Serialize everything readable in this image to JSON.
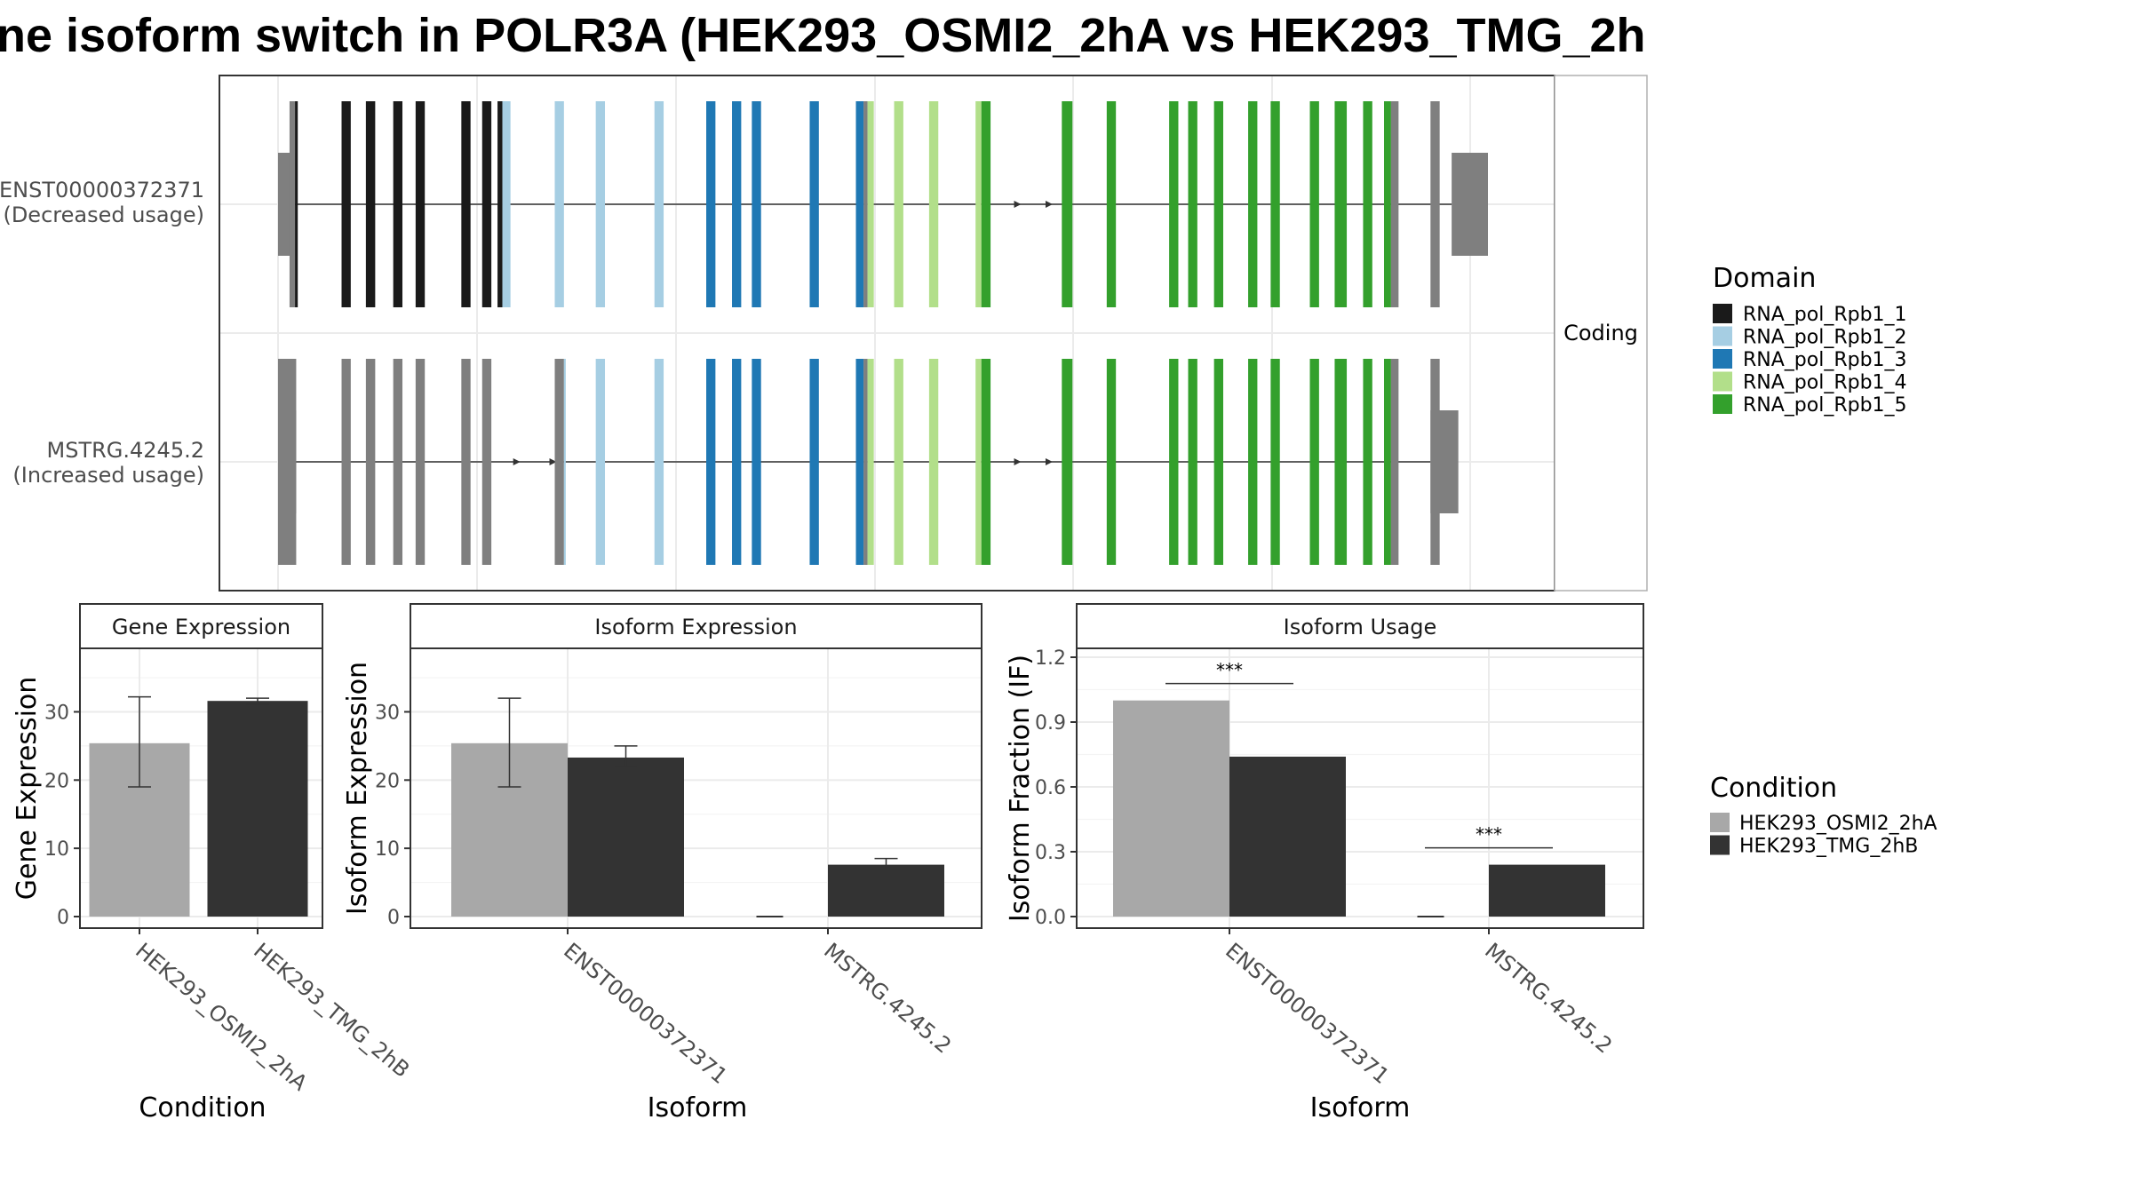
{
  "title": "ne isoform switch in POLR3A (HEK293_OSMI2_2hA vs HEK293_TMG_2h",
  "colors": {
    "domain": {
      "RNA_pol_Rpb1_1": "#1a1a1a",
      "RNA_pol_Rpb1_2": "#a6cee3",
      "RNA_pol_Rpb1_3": "#1f78b4",
      "RNA_pol_Rpb1_4": "#b2df8a",
      "RNA_pol_Rpb1_5": "#33a02c",
      "none": "#7f7f7f"
    },
    "condition": {
      "HEK293_OSMI2_2hA": "#a8a8a8",
      "HEK293_TMG_2hB": "#333333"
    }
  },
  "structure": {
    "strip": "Coding",
    "transcripts": [
      {
        "label_id": "ENST00000372371",
        "label_note": "(Decreased usage)",
        "utr5": [
          0.0,
          0.014
        ],
        "utr3": [
          0.97,
          1.0
        ],
        "cds": [
          {
            "s": 0.0095,
            "e": 0.014,
            "d": "none"
          },
          {
            "s": 0.014,
            "e": 0.0163,
            "d": "RNA_pol_Rpb1_1"
          },
          {
            "s": 0.0525,
            "e": 0.0601,
            "d": "RNA_pol_Rpb1_1"
          },
          {
            "s": 0.0726,
            "e": 0.0803,
            "d": "RNA_pol_Rpb1_1"
          },
          {
            "s": 0.0952,
            "e": 0.1028,
            "d": "RNA_pol_Rpb1_1"
          },
          {
            "s": 0.1137,
            "e": 0.1213,
            "d": "RNA_pol_Rpb1_1"
          },
          {
            "s": 0.1515,
            "e": 0.1591,
            "d": "RNA_pol_Rpb1_1"
          },
          {
            "s": 0.1687,
            "e": 0.1763,
            "d": "RNA_pol_Rpb1_1"
          },
          {
            "s": 0.1814,
            "e": 0.1854,
            "d": "RNA_pol_Rpb1_1"
          },
          {
            "s": 0.1854,
            "e": 0.1921,
            "d": "RNA_pol_Rpb1_2"
          },
          {
            "s": 0.2287,
            "e": 0.2363,
            "d": "RNA_pol_Rpb1_2"
          },
          {
            "s": 0.2626,
            "e": 0.2702,
            "d": "RNA_pol_Rpb1_2"
          },
          {
            "s": 0.3111,
            "e": 0.3187,
            "d": "RNA_pol_Rpb1_2"
          },
          {
            "s": 0.3539,
            "e": 0.3615,
            "d": "RNA_pol_Rpb1_3"
          },
          {
            "s": 0.3752,
            "e": 0.3828,
            "d": "RNA_pol_Rpb1_3"
          },
          {
            "s": 0.3916,
            "e": 0.3992,
            "d": "RNA_pol_Rpb1_3"
          },
          {
            "s": 0.4394,
            "e": 0.447,
            "d": "RNA_pol_Rpb1_3"
          },
          {
            "s": 0.4776,
            "e": 0.4839,
            "d": "RNA_pol_Rpb1_3"
          },
          {
            "s": 0.4839,
            "e": 0.4872,
            "d": "none"
          },
          {
            "s": 0.4872,
            "e": 0.4924,
            "d": "RNA_pol_Rpb1_4"
          },
          {
            "s": 0.5092,
            "e": 0.5168,
            "d": "RNA_pol_Rpb1_4"
          },
          {
            "s": 0.5381,
            "e": 0.5457,
            "d": "RNA_pol_Rpb1_4"
          },
          {
            "s": 0.5765,
            "e": 0.5813,
            "d": "RNA_pol_Rpb1_4"
          },
          {
            "s": 0.5813,
            "e": 0.5889,
            "d": "RNA_pol_Rpb1_5"
          },
          {
            "s": 0.6478,
            "e": 0.6566,
            "d": "RNA_pol_Rpb1_5"
          },
          {
            "s": 0.6849,
            "e": 0.6925,
            "d": "RNA_pol_Rpb1_5"
          },
          {
            "s": 0.7365,
            "e": 0.7441,
            "d": "RNA_pol_Rpb1_5"
          },
          {
            "s": 0.7522,
            "e": 0.7598,
            "d": "RNA_pol_Rpb1_5"
          },
          {
            "s": 0.7736,
            "e": 0.7812,
            "d": "RNA_pol_Rpb1_5"
          },
          {
            "s": 0.8018,
            "e": 0.8094,
            "d": "RNA_pol_Rpb1_5"
          },
          {
            "s": 0.8204,
            "e": 0.828,
            "d": "RNA_pol_Rpb1_5"
          },
          {
            "s": 0.8528,
            "e": 0.8604,
            "d": "RNA_pol_Rpb1_5"
          },
          {
            "s": 0.8733,
            "e": 0.8833,
            "d": "RNA_pol_Rpb1_5"
          },
          {
            "s": 0.8968,
            "e": 0.9044,
            "d": "RNA_pol_Rpb1_5"
          },
          {
            "s": 0.9141,
            "e": 0.9199,
            "d": "RNA_pol_Rpb1_5"
          },
          {
            "s": 0.9199,
            "e": 0.9261,
            "d": "none"
          },
          {
            "s": 0.9525,
            "e": 0.9601,
            "d": "none"
          }
        ],
        "arrows": [
          0.612,
          0.638
        ]
      },
      {
        "label_id": "MSTRG.4245.2",
        "label_note": "(Increased usage)",
        "utr5": [
          0.0,
          0.015
        ],
        "utr3": [
          0.9525,
          0.9755
        ],
        "cds": [
          {
            "s": 0.0,
            "e": 0.015,
            "d": "none"
          },
          {
            "s": 0.0525,
            "e": 0.0601,
            "d": "none"
          },
          {
            "s": 0.0726,
            "e": 0.0803,
            "d": "none"
          },
          {
            "s": 0.0952,
            "e": 0.1028,
            "d": "none"
          },
          {
            "s": 0.1137,
            "e": 0.1213,
            "d": "none"
          },
          {
            "s": 0.1515,
            "e": 0.1591,
            "d": "none"
          },
          {
            "s": 0.1687,
            "e": 0.1763,
            "d": "none"
          },
          {
            "s": 0.2287,
            "e": 0.2363,
            "d": "none"
          },
          {
            "s": 0.2363,
            "e": 0.2378,
            "d": "RNA_pol_Rpb1_2"
          },
          {
            "s": 0.2626,
            "e": 0.2702,
            "d": "RNA_pol_Rpb1_2"
          },
          {
            "s": 0.3111,
            "e": 0.3187,
            "d": "RNA_pol_Rpb1_2"
          },
          {
            "s": 0.3539,
            "e": 0.3615,
            "d": "RNA_pol_Rpb1_3"
          },
          {
            "s": 0.3752,
            "e": 0.3828,
            "d": "RNA_pol_Rpb1_3"
          },
          {
            "s": 0.3916,
            "e": 0.3992,
            "d": "RNA_pol_Rpb1_3"
          },
          {
            "s": 0.4394,
            "e": 0.447,
            "d": "RNA_pol_Rpb1_3"
          },
          {
            "s": 0.4776,
            "e": 0.4839,
            "d": "RNA_pol_Rpb1_3"
          },
          {
            "s": 0.4839,
            "e": 0.4872,
            "d": "none"
          },
          {
            "s": 0.4872,
            "e": 0.4924,
            "d": "RNA_pol_Rpb1_4"
          },
          {
            "s": 0.5092,
            "e": 0.5168,
            "d": "RNA_pol_Rpb1_4"
          },
          {
            "s": 0.5381,
            "e": 0.5457,
            "d": "RNA_pol_Rpb1_4"
          },
          {
            "s": 0.5765,
            "e": 0.5813,
            "d": "RNA_pol_Rpb1_4"
          },
          {
            "s": 0.5813,
            "e": 0.5889,
            "d": "RNA_pol_Rpb1_5"
          },
          {
            "s": 0.6478,
            "e": 0.6566,
            "d": "RNA_pol_Rpb1_5"
          },
          {
            "s": 0.6849,
            "e": 0.6925,
            "d": "RNA_pol_Rpb1_5"
          },
          {
            "s": 0.7365,
            "e": 0.7441,
            "d": "RNA_pol_Rpb1_5"
          },
          {
            "s": 0.7522,
            "e": 0.7598,
            "d": "RNA_pol_Rpb1_5"
          },
          {
            "s": 0.7736,
            "e": 0.7812,
            "d": "RNA_pol_Rpb1_5"
          },
          {
            "s": 0.8018,
            "e": 0.8094,
            "d": "RNA_pol_Rpb1_5"
          },
          {
            "s": 0.8204,
            "e": 0.828,
            "d": "RNA_pol_Rpb1_5"
          },
          {
            "s": 0.8528,
            "e": 0.8604,
            "d": "RNA_pol_Rpb1_5"
          },
          {
            "s": 0.8733,
            "e": 0.8833,
            "d": "RNA_pol_Rpb1_5"
          },
          {
            "s": 0.8968,
            "e": 0.9044,
            "d": "RNA_pol_Rpb1_5"
          },
          {
            "s": 0.9141,
            "e": 0.9199,
            "d": "RNA_pol_Rpb1_5"
          },
          {
            "s": 0.9199,
            "e": 0.9261,
            "d": "none"
          },
          {
            "s": 0.9525,
            "e": 0.9601,
            "d": "none"
          }
        ],
        "arrows": [
          0.198,
          0.228,
          0.612,
          0.638
        ]
      }
    ]
  },
  "legends": {
    "domain": {
      "title": "Domain",
      "items": [
        "RNA_pol_Rpb1_1",
        "RNA_pol_Rpb1_2",
        "RNA_pol_Rpb1_3",
        "RNA_pol_Rpb1_4",
        "RNA_pol_Rpb1_5"
      ]
    },
    "condition": {
      "title": "Condition",
      "items": [
        "HEK293_OSMI2_2hA",
        "HEK293_TMG_2hB"
      ]
    }
  },
  "chart_data": [
    {
      "type": "bar",
      "title": "Gene Expression",
      "xlabel": "Condition",
      "ylabel": "Gene Expression",
      "ylim": [
        0,
        38
      ],
      "yticks": [
        0,
        10,
        20,
        30
      ],
      "categories": [
        "HEK293_OSMI2_2hA",
        "HEK293_TMG_2hB"
      ],
      "values": [
        25.4,
        31.6
      ],
      "errors": [
        [
          19.0,
          32.2
        ],
        [
          31.1,
          32.0
        ]
      ]
    },
    {
      "type": "bar",
      "title": "Isoform Expression",
      "xlabel": "Isoform",
      "ylabel": "Isoform Expression",
      "ylim": [
        0,
        38
      ],
      "yticks": [
        0,
        10,
        20,
        30
      ],
      "categories": [
        "ENST00000372371",
        "MSTRG.4245.2"
      ],
      "series": [
        {
          "name": "HEK293_OSMI2_2hA",
          "values": [
            25.4,
            0.0
          ],
          "errors": [
            [
              19.0,
              32.0
            ],
            [
              0.0,
              0.0
            ]
          ]
        },
        {
          "name": "HEK293_TMG_2hB",
          "values": [
            23.3,
            7.6
          ],
          "errors": [
            [
              22.0,
              25.0
            ],
            [
              6.8,
              8.5
            ]
          ]
        }
      ]
    },
    {
      "type": "bar",
      "title": "Isoform Usage",
      "xlabel": "Isoform",
      "ylabel": "Isoform Fraction (IF)",
      "ylim": [
        0,
        1.2
      ],
      "yticks": [
        "0.0",
        "0.3",
        "0.6",
        "0.9",
        "1.2"
      ],
      "categories": [
        "ENST00000372371",
        "MSTRG.4245.2"
      ],
      "series": [
        {
          "name": "HEK293_OSMI2_2hA",
          "values": [
            1.0,
            0.0
          ]
        },
        {
          "name": "HEK293_TMG_2hB",
          "values": [
            0.74,
            0.24
          ]
        }
      ],
      "significance": [
        "***",
        "***"
      ]
    }
  ]
}
